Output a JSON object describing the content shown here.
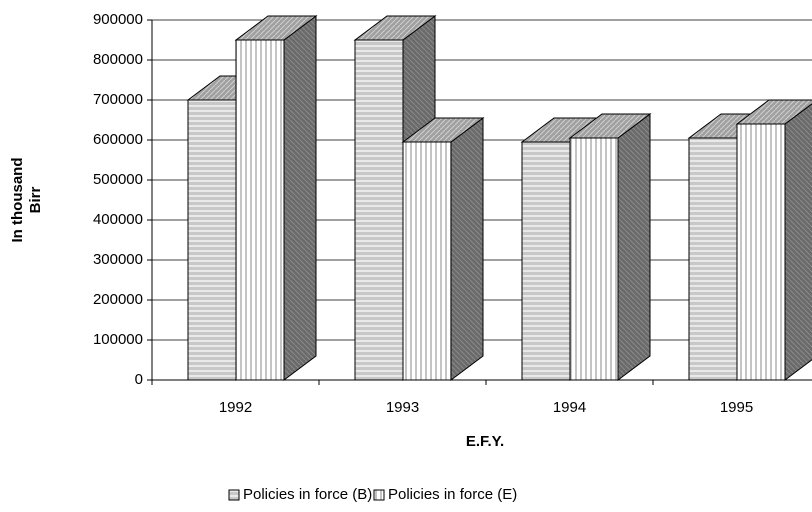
{
  "chart_data": {
    "type": "bar3d",
    "y_label": [
      "In thousand",
      "Birr"
    ],
    "x_label": "E.F.Y.",
    "categories": [
      "1992",
      "1993",
      "1994",
      "1995"
    ],
    "series": [
      {
        "name": "Policies in force (B)",
        "color": "#c8c8c8",
        "values": [
          700000,
          850000,
          595000,
          605000
        ]
      },
      {
        "name": "Policies in force (E)",
        "color": "#ffffff",
        "values": [
          850000,
          595000,
          605000,
          640000
        ]
      }
    ],
    "ylim": [
      0,
      900000
    ],
    "yticks": [
      0,
      100000,
      200000,
      300000,
      400000,
      500000,
      600000,
      700000,
      800000,
      900000
    ],
    "grid": true,
    "legend": "bottom"
  }
}
